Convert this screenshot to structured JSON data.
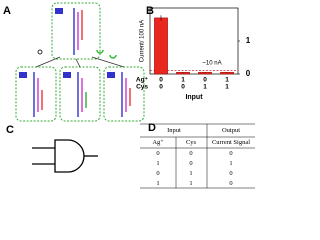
{
  "panels": {
    "a": "A",
    "b": "B",
    "c": "C",
    "d": "D"
  },
  "chart_data": {
    "type": "bar",
    "ylabel": "Current/ 100 nA",
    "xlabel": "Input",
    "categories": [
      null,
      null,
      null,
      null
    ],
    "values": [
      1.7,
      0.05,
      0.05,
      0.05
    ],
    "errors": [
      0.08,
      0.01,
      0.01,
      0.01
    ],
    "color": "#e8281e",
    "ylim": [
      0,
      2
    ],
    "input_rows": [
      {
        "name": "Ag⁺",
        "values": [
          0,
          1,
          0,
          1
        ]
      },
      {
        "name": "Cys",
        "values": [
          0,
          0,
          1,
          1
        ]
      }
    ],
    "threshold": {
      "value": 0.1,
      "label": "~10 nA"
    },
    "y2lim": [
      0,
      2
    ],
    "y2ticks": [
      0,
      1
    ]
  },
  "table": {
    "header": [
      "Input",
      "Output"
    ],
    "subheader": [
      "Ag⁺",
      "Cys",
      "Current Signal"
    ],
    "rows": [
      [
        "0",
        "0",
        "0"
      ],
      [
        "1",
        "0",
        "1"
      ],
      [
        "0",
        "1",
        "0"
      ],
      [
        "1",
        "1",
        "0"
      ]
    ]
  }
}
